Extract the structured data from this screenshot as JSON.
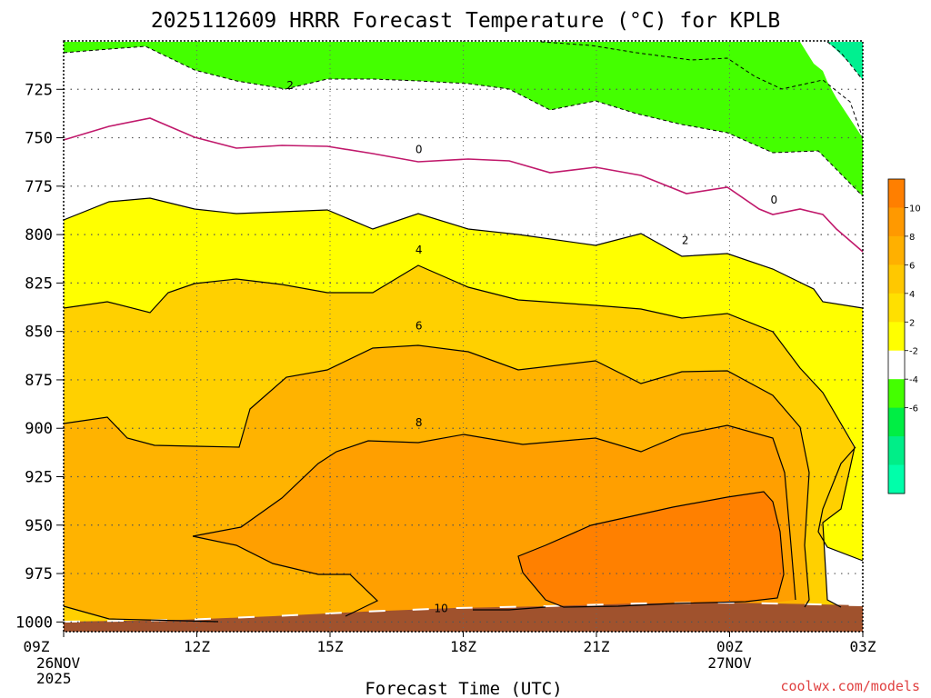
{
  "chart_data": {
    "type": "contour",
    "title": "2025112609 HRRR Forecast Temperature (°C) for KPLB",
    "xlabel": "Forecast Time (UTC)",
    "ylabel": "",
    "x_ticks": [
      {
        "label": "09Z",
        "hour": 0,
        "sub": [
          "26NOV",
          "2025"
        ]
      },
      {
        "label": "12Z",
        "hour": 3,
        "sub": []
      },
      {
        "label": "15Z",
        "hour": 6,
        "sub": []
      },
      {
        "label": "18Z",
        "hour": 9,
        "sub": []
      },
      {
        "label": "21Z",
        "hour": 12,
        "sub": []
      },
      {
        "label": "00Z",
        "hour": 15,
        "sub": [
          "27NOV"
        ]
      },
      {
        "label": "03Z",
        "hour": 18,
        "sub": []
      }
    ],
    "xlim": [
      0,
      18
    ],
    "y_ticks": [
      "725",
      "750",
      "775",
      "800",
      "825",
      "850",
      "875",
      "900",
      "925",
      "950",
      "975",
      "1000"
    ],
    "ylim_hpa": [
      1005,
      700
    ],
    "contour_levels": [
      "-2",
      "0",
      "2",
      "4",
      "6",
      "8",
      "10"
    ],
    "contour_labels": [
      {
        "text": "2",
        "hour": 5.1,
        "hpa": 723
      },
      {
        "text": "0",
        "hour": 8.0,
        "hpa": 756
      },
      {
        "text": "0",
        "hour": 16.0,
        "hpa": 782
      },
      {
        "text": "2",
        "hour": 14.0,
        "hpa": 803
      },
      {
        "text": "4",
        "hour": 8.0,
        "hpa": 808
      },
      {
        "text": "6",
        "hour": 8.0,
        "hpa": 847
      },
      {
        "text": "8",
        "hour": 8.0,
        "hpa": 897
      },
      {
        "text": "10",
        "hour": 8.5,
        "hpa": 993
      }
    ],
    "colorbar": {
      "labels": [
        "10",
        "8",
        "6",
        "4",
        "2",
        "-2",
        "-4",
        "-6"
      ],
      "colors": [
        "#ff7f00",
        "#ff9900",
        "#ffb000",
        "#ffc800",
        "#ffe000",
        "#ffff00",
        "#ffffff",
        "#44ff00",
        "#00ee44",
        "#00ee88",
        "#00ffaa"
      ]
    },
    "fill_colors": {
      "lt_m4": "#00f090",
      "m4_m2": "#44ff00",
      "m2_0": "#ffffff",
      "0_2": "#ffffff",
      "2_4": "#ffff00",
      "4_6": "#ffd000",
      "6_8": "#ffb300",
      "8_10": "#ff9f00",
      "gt_10": "#ff8000",
      "ground": "#a0522d"
    },
    "credit": "coolwx.com/models",
    "credit_color": "#e04040"
  }
}
